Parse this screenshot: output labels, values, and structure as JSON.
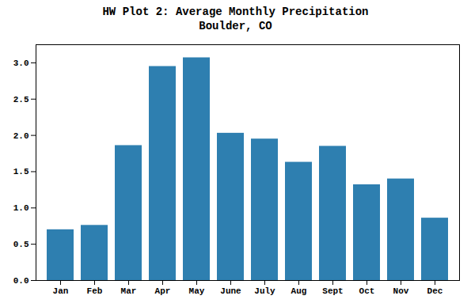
{
  "chart_data": {
    "type": "bar",
    "title": "HW Plot 2: Average Monthly Precipitation",
    "subtitle": "Boulder, CO",
    "categories": [
      "Jan",
      "Feb",
      "Mar",
      "Apr",
      "May",
      "June",
      "July",
      "Aug",
      "Sept",
      "Oct",
      "Nov",
      "Dec"
    ],
    "values": [
      0.7,
      0.76,
      1.86,
      2.95,
      3.07,
      2.03,
      1.95,
      1.63,
      1.85,
      1.32,
      1.4,
      0.86
    ],
    "color": "#2e7fb0",
    "ylim": [
      0.0,
      3.25
    ],
    "yticks": [
      {
        "value": 0.0,
        "label": "0.0"
      },
      0.5,
      {
        "value": 1.0,
        "label": "1.0"
      },
      1.5,
      {
        "value": 2.0,
        "label": "2.0"
      },
      2.5,
      {
        "value": 3.0,
        "label": "3.0"
      }
    ],
    "grid": false
  }
}
